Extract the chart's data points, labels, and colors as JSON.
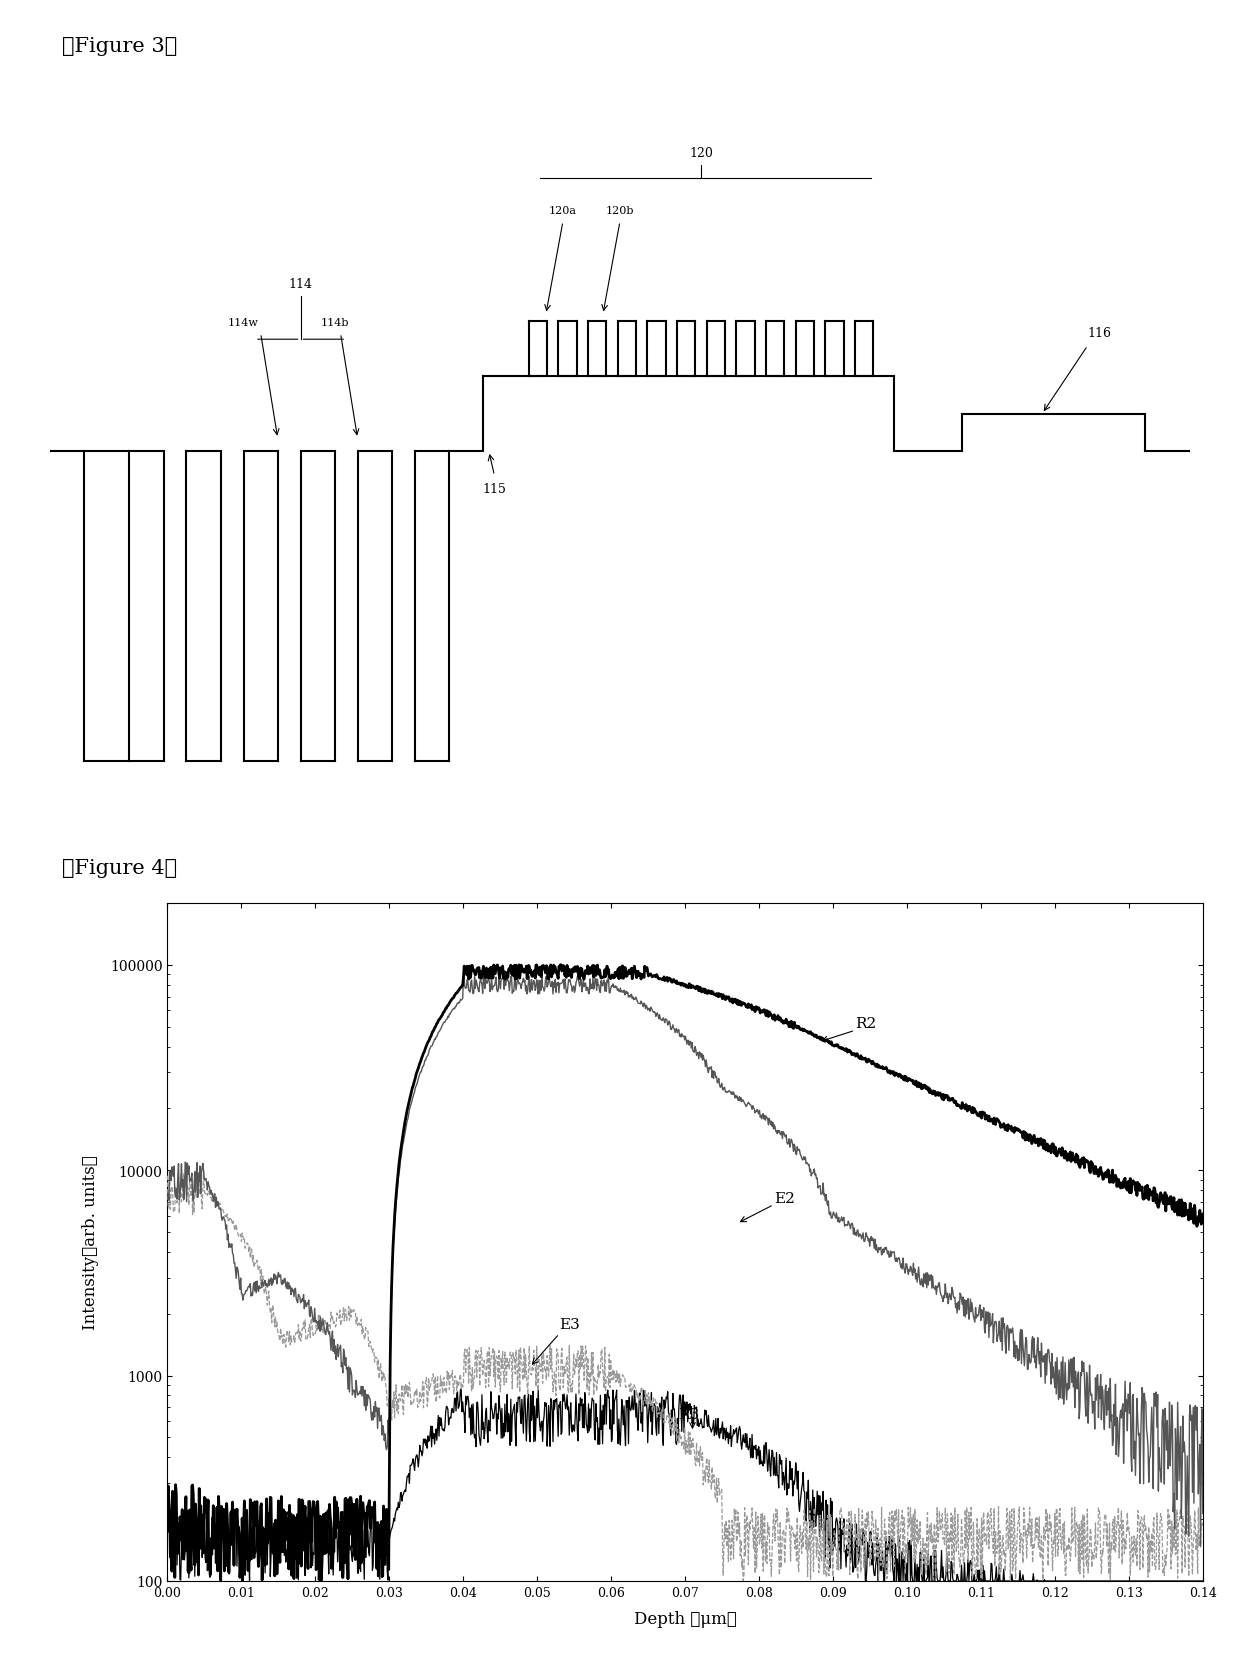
{
  "fig3_title": "【Figure 3】",
  "fig4_title": "【Figure 4】",
  "fig4_xlabel": "Depth （μm）",
  "fig4_ylabel": "Intensity（arb. units）",
  "fig4_xlim": [
    0.0,
    0.14
  ],
  "fig4_ylim_log": [
    100,
    200000
  ],
  "fig4_xticks": [
    0.0,
    0.01,
    0.02,
    0.03,
    0.04,
    0.05,
    0.06,
    0.07,
    0.08,
    0.09,
    0.1,
    0.11,
    0.12,
    0.13,
    0.14
  ],
  "fig4_yticks": [
    100,
    1000,
    10000,
    100000
  ],
  "background_color": "#ffffff",
  "line_color_R2": "#000000",
  "line_color_E2": "#555555",
  "line_color_R3": "#000000",
  "line_color_E3": "#999999",
  "diagram_line_color": "#000000",
  "label_R2": "R2",
  "label_E2": "E2",
  "label_R3": "R3",
  "label_E3": "E3",
  "lw_diagram": 1.5
}
